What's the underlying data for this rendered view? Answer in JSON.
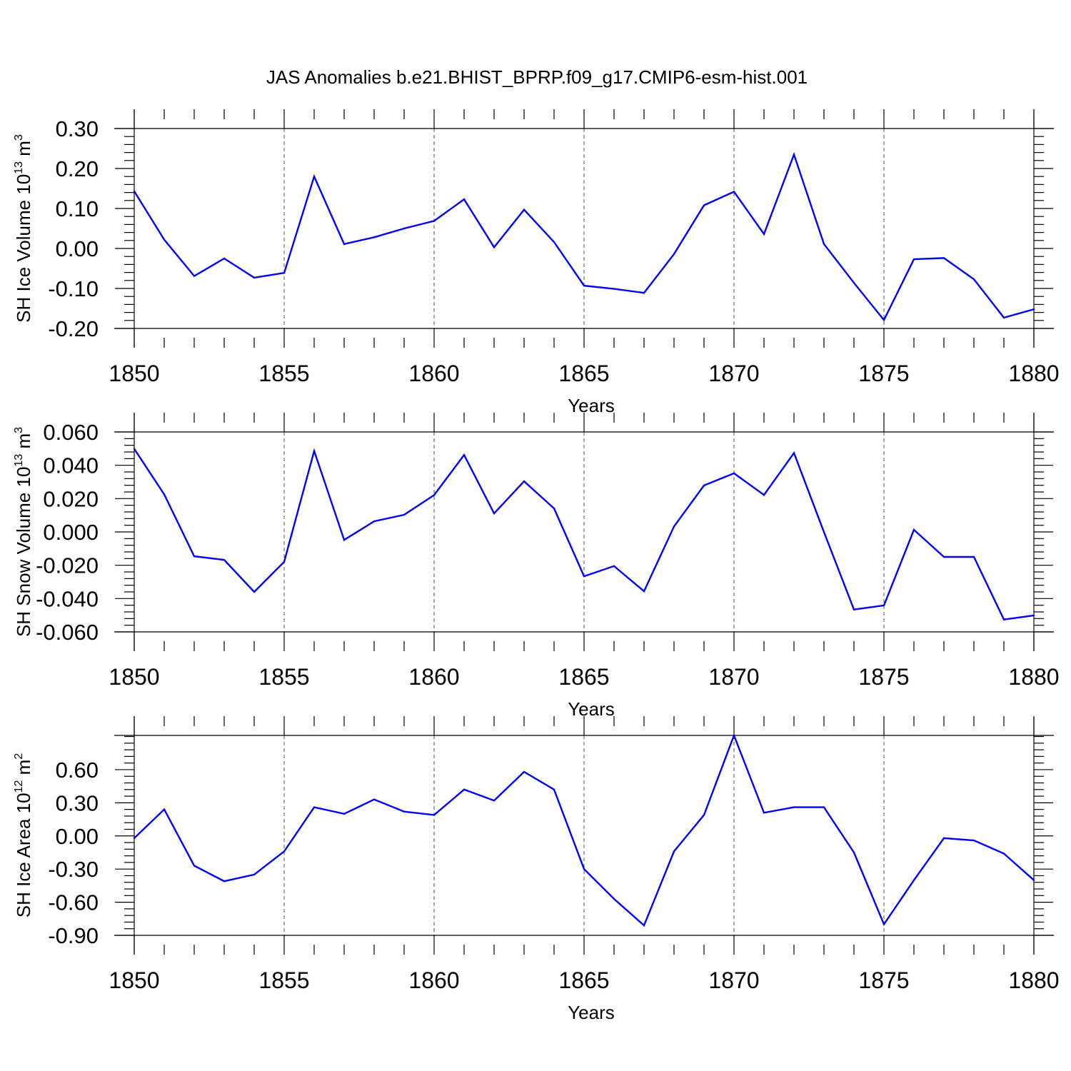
{
  "figure": {
    "title": "JAS Anomalies b.e21.BHIST_BPRP.f09_g17.CMIP6-esm-hist.001"
  },
  "colors": {
    "line": "#0000ff",
    "axis": "#000000",
    "grid": "#555555",
    "background": "#ffffff"
  },
  "chart_data": [
    {
      "type": "line",
      "title": "JAS Anomalies b.e21.BHIST_BPRP.f09_g17.CMIP6-esm-hist.001",
      "xlabel": "Years",
      "ylabel": "SH Ice Volume",
      "ylabel_unit": "10",
      "ylabel_exp": "13",
      "ylabel_unit2": "m",
      "ylabel_exp2": "3",
      "xlim": [
        1850,
        1880
      ],
      "ylim": [
        -0.2,
        0.3
      ],
      "x_ticks": [
        1850,
        1855,
        1860,
        1865,
        1870,
        1875,
        1880
      ],
      "x_tick_labels": [
        "1850",
        "1855",
        "1860",
        "1865",
        "1870",
        "1875",
        "1880"
      ],
      "y_ticks": [
        -0.2,
        -0.1,
        0.0,
        0.1,
        0.2,
        0.3
      ],
      "y_tick_labels": [
        "-0.20",
        "-0.10",
        "0.00",
        "0.10",
        "0.20",
        "0.30"
      ],
      "grid": "vertical dashed at major x ticks",
      "x": [
        1850,
        1851,
        1852,
        1853,
        1854,
        1855,
        1856,
        1857,
        1858,
        1859,
        1860,
        1861,
        1862,
        1863,
        1864,
        1865,
        1866,
        1867,
        1868,
        1869,
        1870,
        1871,
        1872,
        1873,
        1874,
        1875,
        1876,
        1877,
        1878,
        1879,
        1880
      ],
      "values": [
        0.143,
        0.022,
        -0.069,
        -0.025,
        -0.073,
        -0.061,
        0.18,
        0.011,
        0.028,
        0.05,
        0.069,
        0.123,
        0.003,
        0.097,
        0.016,
        -0.093,
        -0.101,
        -0.111,
        -0.014,
        0.108,
        0.142,
        0.036,
        0.235,
        0.011,
        -0.086,
        -0.179,
        -0.027,
        -0.024,
        -0.077,
        -0.173,
        -0.152
      ]
    },
    {
      "type": "line",
      "xlabel": "Years",
      "ylabel": "SH Snow Volume",
      "ylabel_unit": "10",
      "ylabel_exp": "13",
      "ylabel_unit2": "m",
      "ylabel_exp2": "3",
      "xlim": [
        1850,
        1880
      ],
      "ylim": [
        -0.06,
        0.06
      ],
      "x_ticks": [
        1850,
        1855,
        1860,
        1865,
        1870,
        1875,
        1880
      ],
      "x_tick_labels": [
        "1850",
        "1855",
        "1860",
        "1865",
        "1870",
        "1875",
        "1880"
      ],
      "y_ticks": [
        -0.06,
        -0.04,
        -0.02,
        0.0,
        0.02,
        0.04,
        0.06
      ],
      "y_tick_labels": [
        "-0.060",
        "-0.040",
        "-0.020",
        "0.000",
        "0.020",
        "0.040",
        "0.060"
      ],
      "grid": "vertical dashed at major x ticks",
      "x": [
        1850,
        1851,
        1852,
        1853,
        1854,
        1855,
        1856,
        1857,
        1858,
        1859,
        1860,
        1861,
        1862,
        1863,
        1864,
        1865,
        1866,
        1867,
        1868,
        1869,
        1870,
        1871,
        1872,
        1873,
        1874,
        1875,
        1876,
        1877,
        1878,
        1879,
        1880
      ],
      "values": [
        0.0499,
        0.0225,
        -0.0146,
        -0.0168,
        -0.036,
        -0.0179,
        0.0486,
        -0.0048,
        0.0064,
        0.0103,
        0.0221,
        0.0462,
        0.0111,
        0.0304,
        0.0141,
        -0.0266,
        -0.0205,
        -0.0356,
        0.0033,
        0.0279,
        0.0352,
        0.0222,
        0.0474,
        -0.0001,
        -0.0466,
        -0.0441,
        0.0013,
        -0.015,
        -0.015,
        -0.0526,
        -0.0501
      ]
    },
    {
      "type": "line",
      "xlabel": "Years",
      "ylabel": "SH Ice Area",
      "ylabel_unit": "10",
      "ylabel_exp": "12",
      "ylabel_unit2": "m",
      "ylabel_exp2": "2",
      "xlim": [
        1850,
        1880
      ],
      "ylim": [
        -0.9,
        0.91
      ],
      "x_ticks": [
        1850,
        1855,
        1860,
        1865,
        1870,
        1875,
        1880
      ],
      "x_tick_labels": [
        "1850",
        "1855",
        "1860",
        "1865",
        "1870",
        "1875",
        "1880"
      ],
      "y_ticks": [
        -0.9,
        -0.6,
        -0.3,
        0.0,
        0.3,
        0.6
      ],
      "y_tick_labels": [
        "-0.90",
        "-0.60",
        "-0.30",
        "0.00",
        "0.30",
        "0.60"
      ],
      "grid": "vertical dashed at major x ticks",
      "x": [
        1850,
        1851,
        1852,
        1853,
        1854,
        1855,
        1856,
        1857,
        1858,
        1859,
        1860,
        1861,
        1862,
        1863,
        1864,
        1865,
        1866,
        1867,
        1868,
        1869,
        1870,
        1871,
        1872,
        1873,
        1874,
        1875,
        1876,
        1877,
        1878,
        1879,
        1880
      ],
      "values": [
        -0.02,
        0.24,
        -0.27,
        -0.41,
        -0.35,
        -0.14,
        0.26,
        0.2,
        0.33,
        0.22,
        0.19,
        0.42,
        0.32,
        0.58,
        0.42,
        -0.3,
        -0.57,
        -0.81,
        -0.14,
        0.19,
        0.91,
        0.21,
        0.26,
        0.26,
        -0.15,
        -0.8,
        -0.4,
        -0.02,
        -0.04,
        -0.16,
        -0.4
      ]
    }
  ]
}
